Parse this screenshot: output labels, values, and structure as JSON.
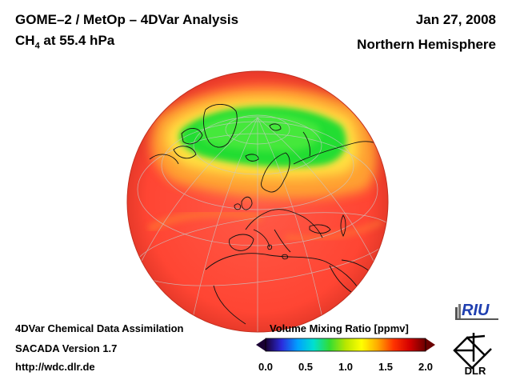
{
  "header": {
    "title": "GOME–2 / MetOp – 4DVar Analysis",
    "species": "CH",
    "species_sub": "4",
    "level": " at 55.4 hPa",
    "date": "Jan 27, 2008",
    "region": "Northern Hemisphere"
  },
  "footer": {
    "line1": "4DVar Chemical Data Assimilation",
    "line2": "SACADA Version 1.7",
    "line3": "http://wdc.dlr.de"
  },
  "colorbar": {
    "title": "Volume Mixing Ratio [ppmv]",
    "ticks": [
      "0.0",
      "0.5",
      "1.0",
      "1.5",
      "2.0"
    ],
    "range": [
      0.0,
      2.0
    ],
    "colors": [
      "#1a0033",
      "#2b2bdd",
      "#00a0ff",
      "#00e0d0",
      "#33dd33",
      "#b8e600",
      "#ffff00",
      "#ffaa00",
      "#ff3300",
      "#d40000",
      "#6a0000"
    ]
  },
  "map": {
    "projection": "orthographic",
    "background_color": "#ff4a3a",
    "low_region_color": "#22dd33",
    "field": "CH4 volume mixing ratio"
  },
  "logos": {
    "riu": "RIU",
    "dlr": "DLR"
  }
}
